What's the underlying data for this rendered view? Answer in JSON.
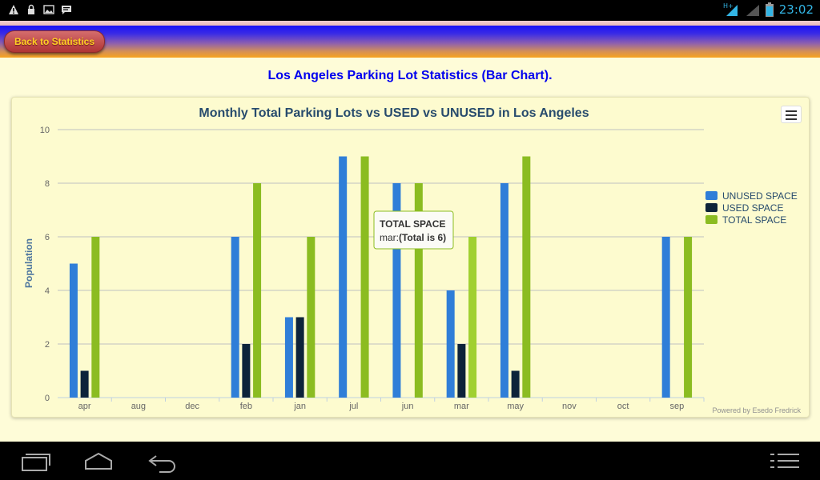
{
  "status_bar": {
    "time": "23:02",
    "left_icons": [
      "warning-icon",
      "lock-icon",
      "image-icon",
      "message-icon"
    ],
    "right_icons": [
      "signal-icon",
      "battery-icon"
    ],
    "network_label": "H+"
  },
  "header": {
    "back_label": "Back to Statistics"
  },
  "page": {
    "title": "Los Angeles Parking Lot Statistics (Bar Chart)."
  },
  "chart_data": {
    "type": "bar",
    "title": "Monthly Total Parking Lots vs USED vs UNUSED in Los Angeles",
    "ylabel": "Population",
    "xlabel": "",
    "ylim": [
      0,
      10
    ],
    "yticks": [
      0,
      2,
      4,
      6,
      8,
      10
    ],
    "categories": [
      "apr",
      "aug",
      "dec",
      "feb",
      "jan",
      "jul",
      "jun",
      "mar",
      "may",
      "nov",
      "oct",
      "sep"
    ],
    "series": [
      {
        "name": "UNUSED SPACE",
        "color": "#2f7ed8",
        "values": [
          5,
          null,
          null,
          6,
          3,
          9,
          8,
          4,
          8,
          null,
          null,
          6
        ]
      },
      {
        "name": "USED SPACE",
        "color": "#0d233a",
        "values": [
          1,
          null,
          null,
          2,
          3,
          null,
          null,
          2,
          1,
          null,
          null,
          null
        ]
      },
      {
        "name": "TOTAL SPACE",
        "color": "#8bbc21",
        "values": [
          6,
          null,
          null,
          8,
          6,
          9,
          8,
          6,
          9,
          null,
          null,
          6
        ]
      }
    ],
    "legend_position": "right",
    "grid": true,
    "tooltip": {
      "series": "TOTAL SPACE",
      "prefix": "mar:",
      "value_text": "(Total is 6)"
    },
    "credits": "Powered by Esedo Fredrick"
  },
  "colors": {
    "background": "#fefcd8",
    "title_blue": "#0000ee",
    "chart_title": "#274b6d",
    "back_text": "#ffd024",
    "clock": "#33b5e5"
  },
  "nav_icons": [
    "recent-apps-icon",
    "home-icon",
    "back-icon",
    "menu-icon"
  ]
}
